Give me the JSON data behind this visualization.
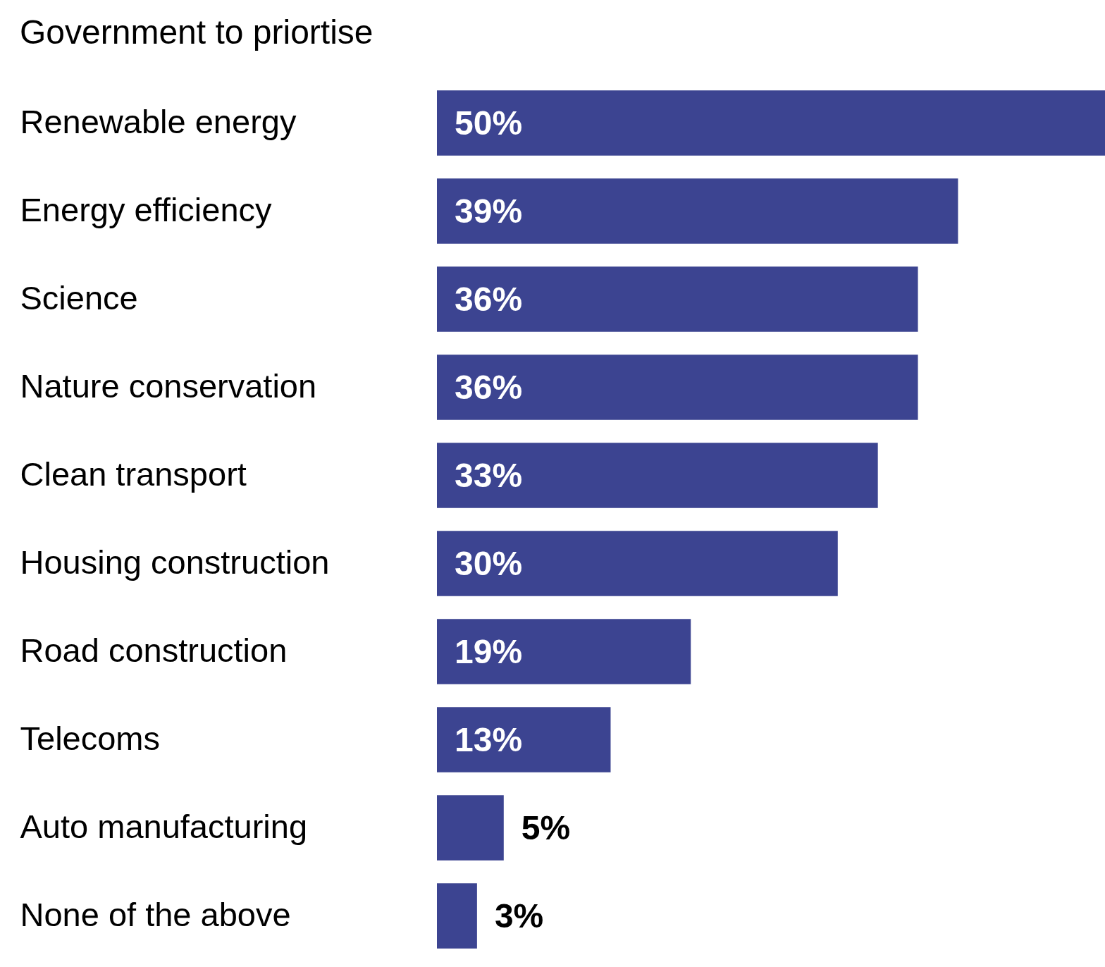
{
  "chart_data": {
    "type": "bar",
    "orientation": "horizontal",
    "title": "Government to priortise",
    "categories": [
      "Renewable energy",
      "Energy efficiency",
      "Science",
      "Nature conservation",
      "Clean transport",
      "Housing construction",
      "Road construction",
      "Telecoms",
      "Auto manufacturing",
      "None of the above"
    ],
    "values": [
      50,
      39,
      36,
      36,
      33,
      30,
      19,
      13,
      5,
      3
    ],
    "value_labels": [
      "50%",
      "39%",
      "36%",
      "36%",
      "33%",
      "30%",
      "19%",
      "13%",
      "5%",
      "3%"
    ],
    "color": "#3c4491"
  }
}
